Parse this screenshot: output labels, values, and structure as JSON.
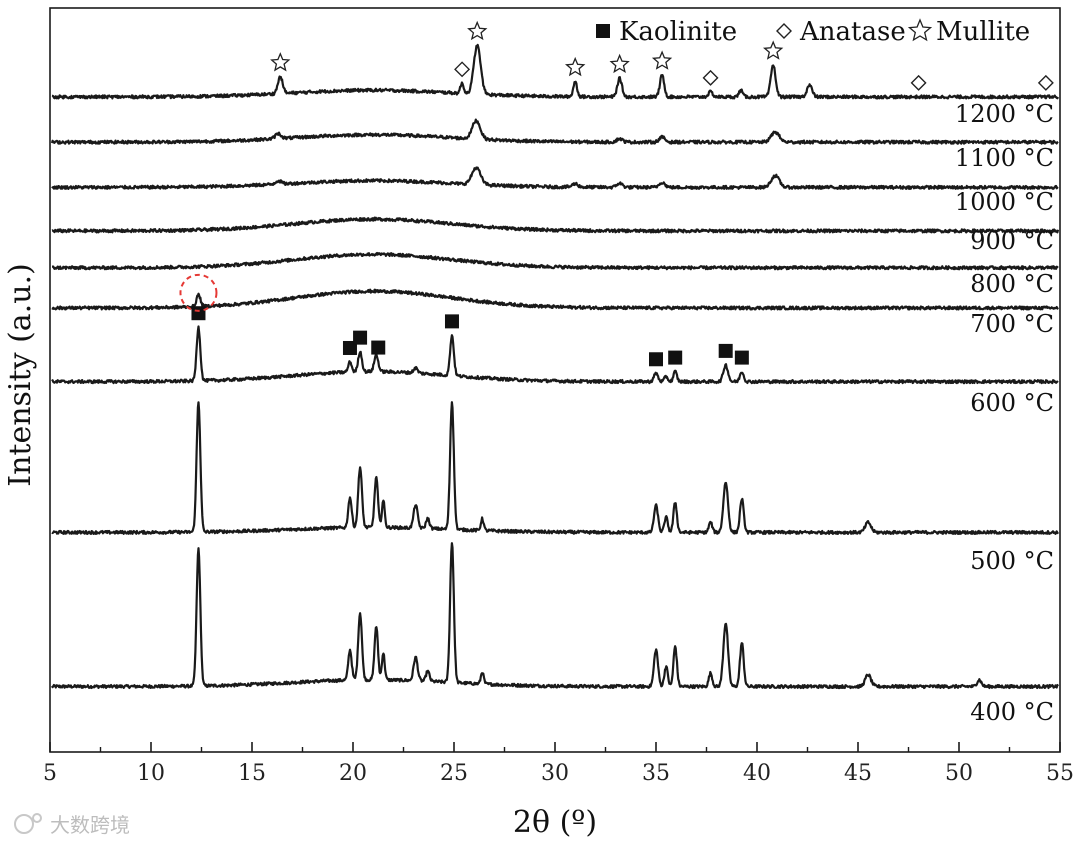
{
  "chart_data": {
    "type": "line",
    "title": "",
    "xlabel": "2θ (º)",
    "ylabel": "Intensity (a.u.)",
    "xlim": [
      5,
      55
    ],
    "x_ticks": [
      5,
      10,
      15,
      20,
      25,
      30,
      35,
      40,
      45,
      50,
      55
    ],
    "y_ticks_shown": false,
    "grid": false,
    "legend": {
      "placement": "top-right",
      "entries": [
        {
          "marker": "filled-square",
          "label": "Kaolinite"
        },
        {
          "marker": "open-diamond",
          "label": "Anatase"
        },
        {
          "marker": "open-star",
          "label": "Mullite"
        }
      ]
    },
    "series": [
      {
        "name": "400 °C",
        "offset": 1.0,
        "baseline": 0.2,
        "peaks": [
          [
            12.35,
            4.1,
            0.13
          ],
          [
            19.85,
            0.9,
            0.12
          ],
          [
            20.35,
            2.0,
            0.13
          ],
          [
            21.15,
            1.6,
            0.12
          ],
          [
            21.5,
            0.8,
            0.1
          ],
          [
            23.1,
            0.7,
            0.14
          ],
          [
            23.7,
            0.3,
            0.12
          ],
          [
            24.9,
            4.2,
            0.13
          ],
          [
            26.4,
            0.35,
            0.1
          ],
          [
            35.0,
            1.1,
            0.14
          ],
          [
            35.5,
            0.6,
            0.12
          ],
          [
            35.95,
            1.2,
            0.12
          ],
          [
            37.7,
            0.4,
            0.12
          ],
          [
            38.45,
            1.9,
            0.16
          ],
          [
            39.25,
            1.3,
            0.13
          ],
          [
            45.5,
            0.35,
            0.2
          ],
          [
            51.0,
            0.2,
            0.15
          ]
        ]
      },
      {
        "name": "500 °C",
        "offset": 5.6,
        "baseline": 0.15,
        "peaks": [
          [
            12.35,
            3.9,
            0.13
          ],
          [
            19.85,
            0.9,
            0.12
          ],
          [
            20.35,
            1.8,
            0.13
          ],
          [
            21.15,
            1.5,
            0.12
          ],
          [
            21.5,
            0.8,
            0.1
          ],
          [
            23.1,
            0.7,
            0.14
          ],
          [
            23.7,
            0.3,
            0.12
          ],
          [
            24.9,
            3.8,
            0.13
          ],
          [
            26.4,
            0.35,
            0.1
          ],
          [
            35.0,
            0.8,
            0.14
          ],
          [
            35.5,
            0.45,
            0.12
          ],
          [
            35.95,
            0.9,
            0.12
          ],
          [
            37.7,
            0.3,
            0.12
          ],
          [
            38.45,
            1.5,
            0.16
          ],
          [
            39.25,
            1.0,
            0.13
          ],
          [
            45.5,
            0.3,
            0.2
          ]
        ]
      },
      {
        "name": "600 °C",
        "offset": 10.1,
        "baseline": 0.3,
        "peaks": [
          [
            12.35,
            1.6,
            0.13
          ],
          [
            19.85,
            0.3,
            0.12
          ],
          [
            20.35,
            0.6,
            0.13
          ],
          [
            21.15,
            0.5,
            0.14
          ],
          [
            23.1,
            0.15,
            0.14
          ],
          [
            24.9,
            1.2,
            0.13
          ],
          [
            35.0,
            0.25,
            0.14
          ],
          [
            35.5,
            0.15,
            0.12
          ],
          [
            35.95,
            0.3,
            0.12
          ],
          [
            38.45,
            0.5,
            0.16
          ],
          [
            39.25,
            0.3,
            0.13
          ]
        ]
      },
      {
        "name": "700 °C",
        "offset": 12.3,
        "baseline": 0.5,
        "peaks": [
          [
            12.35,
            0.35,
            0.14
          ]
        ]
      },
      {
        "name": "800 °C",
        "offset": 13.5,
        "baseline": 0.4,
        "peaks": []
      },
      {
        "name": "900 °C",
        "offset": 14.6,
        "baseline": 0.35,
        "peaks": []
      },
      {
        "name": "1000 °C",
        "offset": 15.9,
        "baseline": 0.2,
        "peaks": [
          [
            16.3,
            0.1,
            0.2
          ],
          [
            26.1,
            0.5,
            0.3
          ],
          [
            31.0,
            0.1,
            0.2
          ],
          [
            33.2,
            0.12,
            0.2
          ],
          [
            35.3,
            0.15,
            0.2
          ],
          [
            40.9,
            0.35,
            0.28
          ]
        ]
      },
      {
        "name": "1100 °C",
        "offset": 17.25,
        "baseline": 0.22,
        "peaks": [
          [
            16.3,
            0.15,
            0.2
          ],
          [
            26.1,
            0.55,
            0.28
          ],
          [
            33.2,
            0.1,
            0.2
          ],
          [
            35.3,
            0.15,
            0.2
          ],
          [
            40.9,
            0.3,
            0.28
          ]
        ]
      },
      {
        "name": "1200 °C",
        "offset": 18.6,
        "baseline": 0.2,
        "peaks": [
          [
            16.4,
            0.5,
            0.17
          ],
          [
            25.4,
            0.3,
            0.12
          ],
          [
            26.15,
            1.45,
            0.24
          ],
          [
            31.0,
            0.45,
            0.13
          ],
          [
            33.2,
            0.55,
            0.16
          ],
          [
            35.3,
            0.65,
            0.15
          ],
          [
            37.7,
            0.15,
            0.15
          ],
          [
            39.2,
            0.2,
            0.13
          ],
          [
            40.8,
            0.95,
            0.17
          ],
          [
            42.6,
            0.35,
            0.18
          ]
        ]
      }
    ],
    "annotations": [
      {
        "type": "filled-square",
        "label": "Kaolinite",
        "series": "600 °C",
        "x": [
          12.35,
          19.85,
          20.35,
          21.25,
          24.9,
          35.0,
          35.95,
          38.45,
          39.25
        ]
      },
      {
        "type": "open-diamond",
        "label": "Anatase",
        "series": "1200 °C",
        "x": [
          25.4,
          37.7,
          48.0,
          54.3
        ]
      },
      {
        "type": "open-star",
        "label": "Mullite",
        "series": "1200 °C",
        "x": [
          16.4,
          26.15,
          31.0,
          33.2,
          35.3,
          40.8
        ]
      },
      {
        "type": "dashed-circle",
        "color": "#e53935",
        "series": "700 °C",
        "x": 12.35
      }
    ],
    "temperature_labels": [
      "1200 °C",
      "1100 °C",
      "1000 °C",
      "900 °C",
      "800 °C",
      "700 °C",
      "600 °C",
      "500 °C",
      "400 °C"
    ],
    "colors": {
      "line": "#1a1a1a",
      "highlight": "#e53935",
      "watermark": "#bdbdbd"
    }
  },
  "watermark": {
    "text": "大数跨境"
  }
}
